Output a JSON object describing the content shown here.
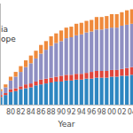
{
  "chart_data": {
    "type": "bar",
    "stacked": true,
    "x_label": "Year",
    "categories": [
      null,
      null,
      "80",
      null,
      "82",
      null,
      "84",
      null,
      "86",
      null,
      "88",
      null,
      "90",
      null,
      "92",
      null,
      "94",
      null,
      "96",
      null,
      "98",
      null,
      "00",
      null,
      "02",
      null,
      "04"
    ],
    "series": [
      {
        "color": "#2e86c1",
        "values": [
          8,
          10,
          13,
          14,
          16,
          17,
          18,
          20,
          21,
          22,
          23,
          24,
          24,
          25,
          25,
          26,
          26,
          27,
          27,
          28,
          28,
          28,
          29,
          29,
          30,
          30,
          31
        ]
      },
      {
        "color": "#e0463c",
        "values": [
          2,
          2,
          3,
          3,
          3,
          4,
          4,
          4,
          5,
          5,
          5,
          5,
          6,
          6,
          6,
          6,
          6,
          6,
          7,
          7,
          7,
          7,
          7,
          7,
          7,
          8,
          8
        ]
      },
      {
        "name": "ope",
        "color": "#8f8fc2",
        "values": [
          4,
          6,
          9,
          12,
          15,
          18,
          21,
          24,
          27,
          30,
          33,
          35,
          36,
          38,
          39,
          40,
          41,
          42,
          42,
          43,
          43,
          44,
          44,
          44,
          45,
          45,
          45
        ]
      },
      {
        "name": "ia",
        "color": "#ef8a3c",
        "values": [
          2,
          3,
          4,
          5,
          6,
          7,
          8,
          8,
          9,
          9,
          10,
          10,
          11,
          11,
          11,
          12,
          12,
          12,
          12,
          13,
          13,
          13,
          14,
          14,
          14,
          15,
          15
        ]
      }
    ],
    "ylim": [
      0,
      105
    ],
    "legend": "upper left",
    "tick_labels": "x"
  }
}
